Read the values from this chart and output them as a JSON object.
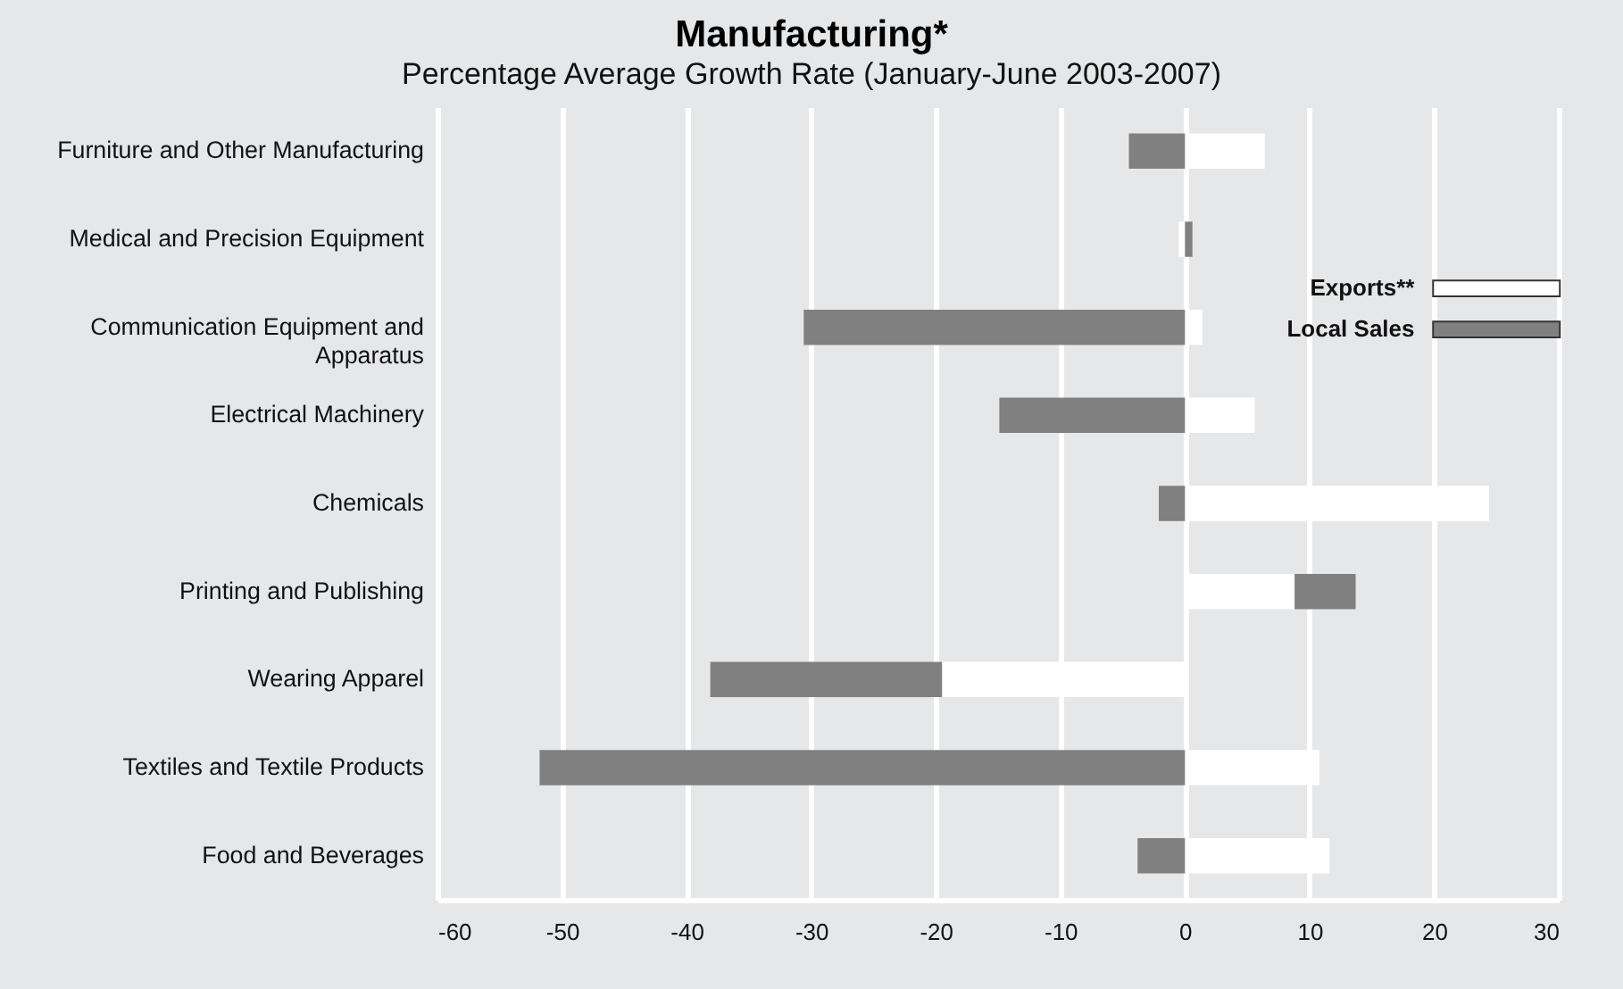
{
  "chart_data": {
    "type": "bar",
    "orientation": "horizontal",
    "stacked": true,
    "title": "Manufacturing*",
    "subtitle": "Percentage Average Growth Rate (January-June 2003-2007)",
    "categories": [
      "Furniture and Other Manufacturing",
      "Medical and Precision Equipment",
      "Communication Equipment and Apparatus",
      "Electrical Machinery",
      "Chemicals",
      "Printing and Publishing",
      "Wearing Apparel",
      "Textiles and Textile Products",
      "Food and Beverages"
    ],
    "series": [
      {
        "name": "Exports**",
        "color": "#ffffff",
        "values": [
          6.4,
          -0.5,
          1.4,
          5.6,
          24.4,
          8.8,
          -19.5,
          10.8,
          11.6
        ]
      },
      {
        "name": "Local Sales",
        "color": "#808080",
        "values": [
          -4.5,
          0.6,
          -30.6,
          -14.9,
          -2.1,
          4.9,
          -18.6,
          -51.8,
          -3.8
        ]
      }
    ],
    "xlim": [
      -60,
      30
    ],
    "xticks": [
      -60,
      -50,
      -40,
      -30,
      -20,
      -10,
      0,
      10,
      20,
      30
    ],
    "grid": "x",
    "legend": "top right"
  }
}
